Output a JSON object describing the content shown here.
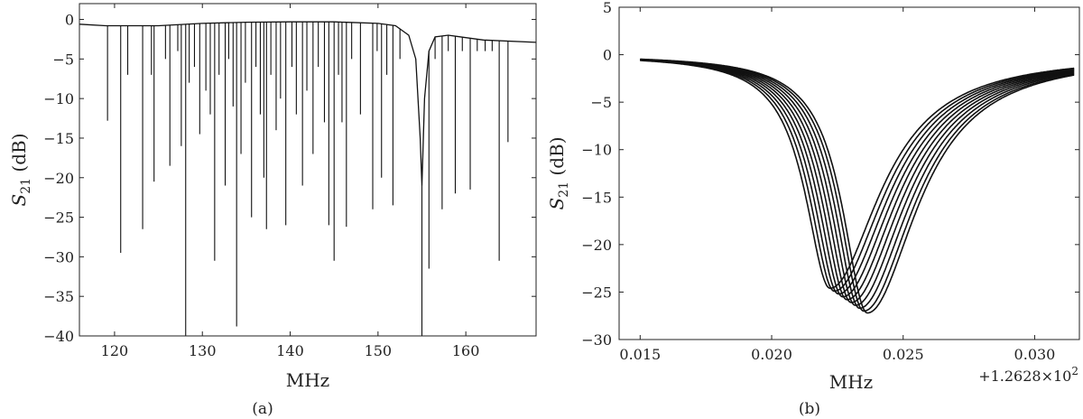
{
  "chart_data": [
    {
      "type": "line",
      "caption": "(a)",
      "xlabel": "MHz",
      "ylabel_main": "S",
      "ylabel_sub": "21",
      "ylabel_unit": "(dB)",
      "xlim": [
        116,
        168
      ],
      "ylim": [
        -40,
        2
      ],
      "xticks": [
        120,
        130,
        140,
        150,
        160
      ],
      "yticks": [
        0,
        -5,
        -10,
        -15,
        -20,
        -25,
        -30,
        -35,
        -40
      ],
      "baseline": [
        [
          116,
          -0.6
        ],
        [
          119,
          -0.8
        ],
        [
          125,
          -0.8
        ],
        [
          130,
          -0.5
        ],
        [
          135,
          -0.35
        ],
        [
          140,
          -0.3
        ],
        [
          145,
          -0.3
        ],
        [
          150,
          -0.5
        ],
        [
          152,
          -0.8
        ],
        [
          153.5,
          -2.0
        ],
        [
          154.3,
          -5.0
        ],
        [
          154.8,
          -15.0
        ],
        [
          155.0,
          -21.0
        ],
        [
          155.3,
          -10.0
        ],
        [
          155.8,
          -4.0
        ],
        [
          156.5,
          -2.2
        ],
        [
          158,
          -2.0
        ],
        [
          162,
          -2.6
        ],
        [
          168,
          -2.9
        ]
      ],
      "resonances": [
        [
          119.2,
          -12.8
        ],
        [
          120.7,
          -29.5
        ],
        [
          121.5,
          -7
        ],
        [
          123.2,
          -26.5
        ],
        [
          124.2,
          -7
        ],
        [
          124.5,
          -20.5
        ],
        [
          125.8,
          -5
        ],
        [
          126.3,
          -18.5
        ],
        [
          127.2,
          -4
        ],
        [
          127.6,
          -16
        ],
        [
          128.1,
          -40
        ],
        [
          128.5,
          -8
        ],
        [
          129.1,
          -6
        ],
        [
          129.7,
          -14.5
        ],
        [
          130.4,
          -9
        ],
        [
          130.9,
          -12
        ],
        [
          131.4,
          -30.5
        ],
        [
          131.9,
          -7
        ],
        [
          132.6,
          -21
        ],
        [
          133.0,
          -5
        ],
        [
          133.5,
          -11
        ],
        [
          133.9,
          -38.8
        ],
        [
          134.4,
          -17
        ],
        [
          134.9,
          -8
        ],
        [
          135.6,
          -25
        ],
        [
          136.1,
          -6
        ],
        [
          136.6,
          -12
        ],
        [
          137.0,
          -20
        ],
        [
          137.3,
          -26.5
        ],
        [
          137.8,
          -7
        ],
        [
          138.4,
          -14
        ],
        [
          138.9,
          -10
        ],
        [
          139.5,
          -26
        ],
        [
          140.2,
          -6
        ],
        [
          140.7,
          -12
        ],
        [
          141.4,
          -21
        ],
        [
          141.9,
          -9
        ],
        [
          142.6,
          -17
        ],
        [
          143.2,
          -6
        ],
        [
          143.9,
          -13
        ],
        [
          144.4,
          -26
        ],
        [
          145.0,
          -30.5
        ],
        [
          145.5,
          -7
        ],
        [
          145.9,
          -13
        ],
        [
          146.4,
          -26.2
        ],
        [
          147.0,
          -5
        ],
        [
          148.0,
          -12
        ],
        [
          149.4,
          -24
        ],
        [
          149.9,
          -4
        ],
        [
          150.4,
          -20
        ],
        [
          151.0,
          -7
        ],
        [
          151.7,
          -23.5
        ],
        [
          152.5,
          -5
        ],
        [
          155.0,
          -40
        ],
        [
          155.8,
          -31.5
        ],
        [
          156.5,
          -5
        ],
        [
          157.3,
          -24
        ],
        [
          158.0,
          -4
        ],
        [
          158.8,
          -22
        ],
        [
          159.6,
          -4
        ],
        [
          160.5,
          -21.5
        ],
        [
          161.3,
          -4
        ],
        [
          162.2,
          -4
        ],
        [
          163.0,
          -4
        ],
        [
          163.8,
          -30.5
        ],
        [
          164.8,
          -15.5
        ]
      ]
    },
    {
      "type": "line",
      "caption": "(b)",
      "xlabel": "MHz",
      "ylabel_main": "S",
      "ylabel_sub": "21",
      "ylabel_unit": "(dB)",
      "offset_label": "+1.2628×10",
      "offset_exp": "2",
      "xlim": [
        0.0142,
        0.0317
      ],
      "ylim": [
        -30,
        5
      ],
      "xticks": [
        "0.015",
        "0.020",
        "0.025",
        "0.030"
      ],
      "yticks": [
        5,
        0,
        -5,
        -10,
        -15,
        -20,
        -25,
        -30
      ],
      "curve_range": [
        0.015,
        0.0315
      ],
      "series": [
        {
          "f0": 0.02222,
          "depth": -24.6
        },
        {
          "f0": 0.02238,
          "depth": -24.9
        },
        {
          "f0": 0.02254,
          "depth": -25.2
        },
        {
          "f0": 0.0227,
          "depth": -25.5
        },
        {
          "f0": 0.02286,
          "depth": -25.8
        },
        {
          "f0": 0.02302,
          "depth": -26.1
        },
        {
          "f0": 0.02318,
          "depth": -26.4
        },
        {
          "f0": 0.02334,
          "depth": -26.7
        },
        {
          "f0": 0.0235,
          "depth": -27.0
        },
        {
          "f0": 0.02364,
          "depth": -27.2
        }
      ]
    }
  ]
}
